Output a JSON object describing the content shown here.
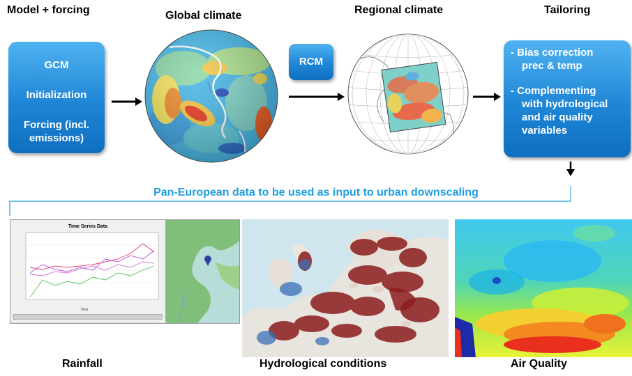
{
  "headers": {
    "model_forcing": "Model + forcing",
    "global_climate": "Global climate",
    "regional_climate": "Regional climate",
    "tailoring": "Tailoring"
  },
  "gcm_box": {
    "title": "GCM",
    "line1": "Initialization",
    "line2a": "Forcing (incl.",
    "line2b": "emissions)"
  },
  "rcm_box": {
    "label": "RCM"
  },
  "tailoring_box": {
    "item1a": "- Bias correction",
    "item1b": "prec & temp",
    "item2a": "- Complementing",
    "item2b": "with hydrological",
    "item2c": "and air quality",
    "item2d": "variables"
  },
  "pan_european": "Pan-European data to be used as input to urban downscaling",
  "rainfall_chart": {
    "title": "Time Series Data",
    "xlabel": "Time"
  },
  "captions": {
    "rainfall": "Rainfall",
    "hydrological": "Hydrological conditions",
    "air_quality": "Air Quality"
  },
  "colors": {
    "box_blue": "#1f86d6",
    "pan_text": "#1f9ee0",
    "bracket_line": "#1f9ee0"
  }
}
